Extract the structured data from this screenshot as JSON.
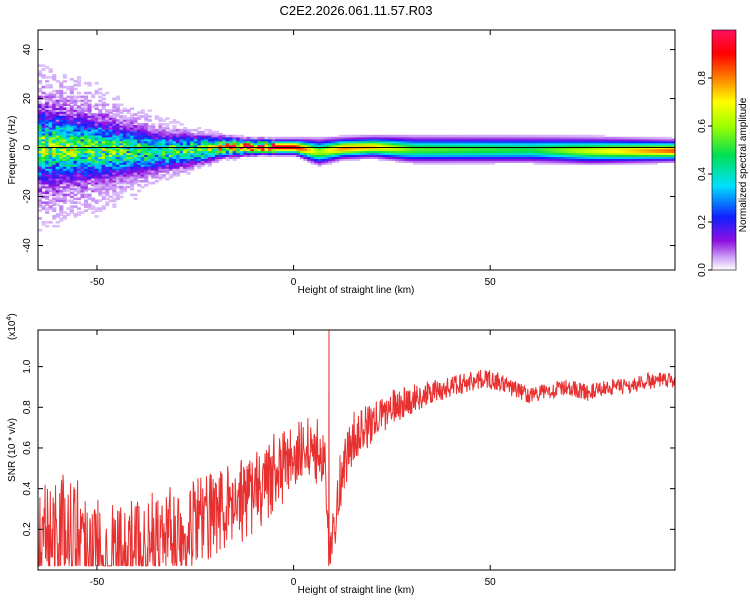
{
  "title": "C2E2.2026.061.11.57.R03",
  "colors": {
    "snr_line": "#e83030",
    "axis": "#000000",
    "zero_line": "#000000"
  },
  "chart_data": [
    {
      "type": "heatmap",
      "name": "spectrogram",
      "xlabel": "Height of straight line (km)",
      "ylabel": "Frequency (Hz)",
      "xlim": [
        -65,
        97
      ],
      "ylim": [
        -50,
        48
      ],
      "xticks": [
        -50,
        0,
        50
      ],
      "yticks": [
        -40,
        -20,
        0,
        20,
        40
      ],
      "colorbar": {
        "label": "Normalized spectral amplitude",
        "range": [
          0,
          1
        ],
        "ticks": [
          "0.0",
          "0.2",
          "0.4",
          "0.6",
          "0.8"
        ],
        "tick_values": [
          0,
          0.2,
          0.4,
          0.6,
          0.8
        ]
      },
      "ridge": [
        {
          "x": -65,
          "center": 0,
          "spread": 7,
          "amp": 0.45
        },
        {
          "x": -50,
          "center": -1,
          "spread": 6,
          "amp": 0.45
        },
        {
          "x": -35,
          "center": -2,
          "spread": 4,
          "amp": 0.4
        },
        {
          "x": -25,
          "center": -1,
          "spread": 3,
          "amp": 0.5
        },
        {
          "x": -18,
          "center": 0,
          "spread": 2,
          "amp": 0.7
        },
        {
          "x": -10,
          "center": 0,
          "spread": 1.5,
          "amp": 0.95
        },
        {
          "x": 0,
          "center": 0,
          "spread": 1.5,
          "amp": 0.95
        },
        {
          "x": 6,
          "center": -2,
          "spread": 2.5,
          "amp": 0.6
        },
        {
          "x": 12,
          "center": -0.5,
          "spread": 2,
          "amp": 0.8
        },
        {
          "x": 20,
          "center": 0,
          "spread": 2,
          "amp": 0.75
        },
        {
          "x": 30,
          "center": -1,
          "spread": 2.5,
          "amp": 0.55
        },
        {
          "x": 60,
          "center": -1,
          "spread": 2.5,
          "amp": 0.5
        },
        {
          "x": 75,
          "center": -1.5,
          "spread": 2.5,
          "amp": 0.65
        },
        {
          "x": 97,
          "center": -1.5,
          "spread": 2,
          "amp": 0.85
        }
      ]
    },
    {
      "type": "line",
      "name": "snr",
      "xlabel": "Height of straight line (km)",
      "ylabel": "SNR (10 * v/v)",
      "scale_label": "(x10",
      "scale_exp": "4",
      "xlim": [
        -65,
        97
      ],
      "ylim": [
        0,
        1.18
      ],
      "xticks": [
        -50,
        0,
        50
      ],
      "yticks": [
        0.2,
        0.4,
        0.6,
        0.8,
        1.0
      ],
      "ytick_labels": [
        "0.2",
        "0.4",
        "0.6",
        "0.8",
        "1.0"
      ],
      "envelope": {
        "x": [
          -65,
          -60,
          -55,
          -50,
          -45,
          -40,
          -35,
          -30,
          -25,
          -20,
          -15,
          -10,
          -5,
          0,
          5,
          8,
          9,
          10,
          12,
          15,
          20,
          25,
          30,
          35,
          40,
          45,
          50,
          55,
          60,
          65,
          70,
          75,
          80,
          85,
          90,
          97
        ],
        "y": [
          0.12,
          0.2,
          0.2,
          0.1,
          0.08,
          0.1,
          0.15,
          0.18,
          0.22,
          0.28,
          0.32,
          0.38,
          0.45,
          0.55,
          0.6,
          0.55,
          0.1,
          0.2,
          0.45,
          0.65,
          0.72,
          0.8,
          0.84,
          0.87,
          0.9,
          0.93,
          0.94,
          0.9,
          0.86,
          0.88,
          0.9,
          0.87,
          0.9,
          0.9,
          0.93,
          0.93
        ]
      },
      "noise": {
        "x": [
          -65,
          -40,
          -20,
          0,
          10,
          20,
          35,
          60,
          97
        ],
        "amp": [
          0.28,
          0.25,
          0.22,
          0.18,
          0.15,
          0.1,
          0.06,
          0.04,
          0.04
        ]
      },
      "spikes": [
        {
          "x": 9,
          "y": 1.18
        },
        {
          "x": 9.4,
          "y": 0.03
        }
      ]
    }
  ]
}
